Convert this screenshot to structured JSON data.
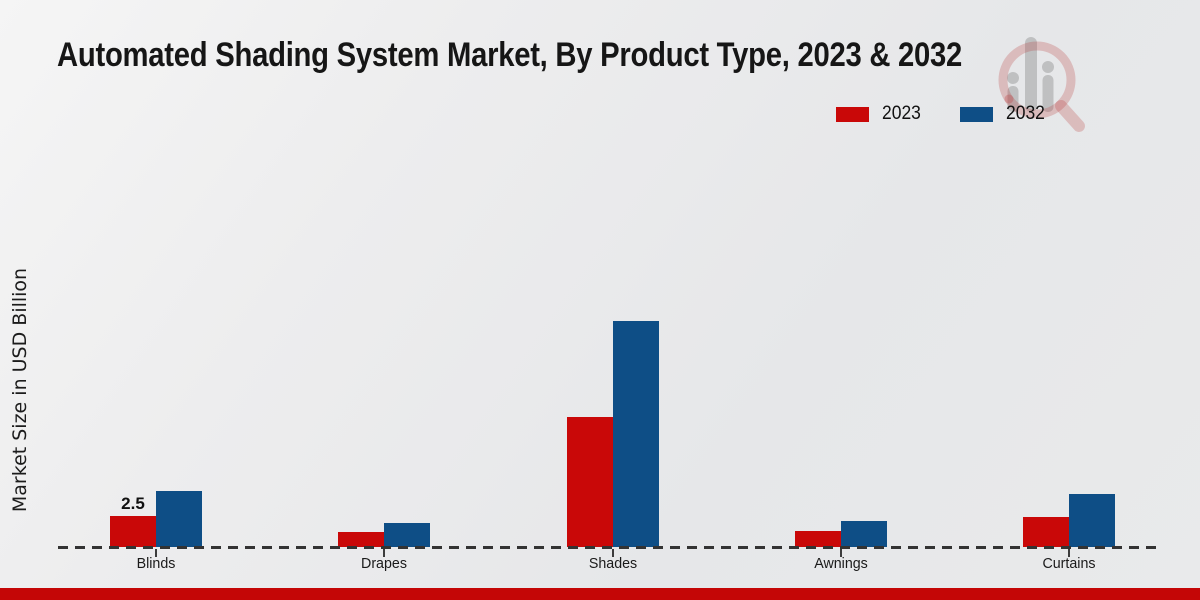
{
  "title": "Automated Shading System Market, By Product Type, 2023 & 2032",
  "colors": {
    "series_2023": "#c90808",
    "series_2032": "#0e4e86",
    "footer": "#c40606",
    "baseline": "#333333"
  },
  "legend": {
    "items": [
      {
        "label": "2023"
      },
      {
        "label": "2032"
      }
    ]
  },
  "watermark_icon": "magnifier-bar-chart-logo",
  "chart_data": {
    "type": "bar",
    "title": "Automated Shading System Market, By Product Type, 2023 & 2032",
    "categories": [
      "Blinds",
      "Drapes",
      "Shades",
      "Awnings",
      "Curtains"
    ],
    "series": [
      {
        "name": "2023",
        "color": "#c90808",
        "values": [
          2.5,
          1.2,
          10.5,
          1.3,
          2.4
        ]
      },
      {
        "name": "2032",
        "color": "#0e4e86",
        "values": [
          4.5,
          1.9,
          18.2,
          2.1,
          4.3
        ]
      }
    ],
    "xlabel": "",
    "ylabel": "Market Size in USD Billion",
    "ylim": [
      0,
      19
    ],
    "grid": false,
    "legend_position": "top-right",
    "baseline_style": "dashed",
    "annotations": [
      {
        "text": "2.5",
        "category": "Blinds",
        "series": "2023"
      }
    ]
  }
}
